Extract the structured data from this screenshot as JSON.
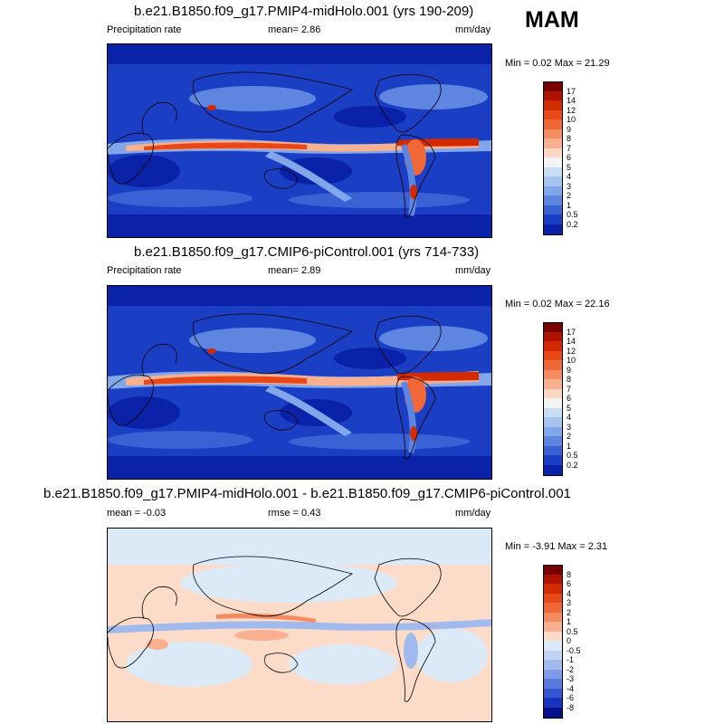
{
  "season": "MAM",
  "panels": [
    {
      "title": "b.e21.B1850.f09_g17.PMIP4-midHolo.001 (yrs 190-209)",
      "left_label": "Precipitation rate",
      "center_label": "mean=   2.86",
      "right_label": "mm/day",
      "minmax": "Min =   0.02 Max =  21.29",
      "colorbar_labels": [
        "17",
        "14",
        "12",
        "10",
        "9",
        "8",
        "7",
        "6",
        "5",
        "4",
        "3",
        "2",
        "1",
        "0.5",
        "0.2"
      ],
      "colors": [
        "#7a0000",
        "#b01200",
        "#d42a00",
        "#e84818",
        "#f06838",
        "#f58c60",
        "#f8b090",
        "#fcd6c4",
        "#f4f4f4",
        "#c8dcf6",
        "#a6c4f0",
        "#82a6ea",
        "#5e86e0",
        "#3a62d4",
        "#1a3ec4",
        "#0a22a8"
      ]
    },
    {
      "title": "b.e21.B1850.f09_g17.CMIP6-piControl.001 (yrs 714-733)",
      "left_label": "Precipitation rate",
      "center_label": "mean=   2.89",
      "right_label": "mm/day",
      "minmax": "Min =   0.02 Max =  22.16",
      "colorbar_labels": [
        "17",
        "14",
        "12",
        "10",
        "9",
        "8",
        "7",
        "6",
        "5",
        "4",
        "3",
        "2",
        "1",
        "0.5",
        "0.2"
      ],
      "colors": [
        "#7a0000",
        "#b01200",
        "#d42a00",
        "#e84818",
        "#f06838",
        "#f58c60",
        "#f8b090",
        "#fcd6c4",
        "#f4f4f4",
        "#c8dcf6",
        "#a6c4f0",
        "#82a6ea",
        "#5e86e0",
        "#3a62d4",
        "#1a3ec4",
        "#0a22a8"
      ]
    },
    {
      "title": "b.e21.B1850.f09_g17.PMIP4-midHolo.001 - b.e21.B1850.f09_g17.CMIP6-piControl.001",
      "left_label": "mean =   -0.03",
      "center_label": "rmse =   0.43",
      "right_label": "mm/day",
      "minmax": "Min =  -3.91 Max =   2.31",
      "colorbar_labels": [
        "8",
        "6",
        "4",
        "3",
        "2",
        "1",
        "0.5",
        "0",
        "-0.5",
        "-1",
        "-2",
        "-3",
        "-4",
        "-6",
        "-8"
      ],
      "colors": [
        "#7a0000",
        "#b01200",
        "#d42a00",
        "#e84818",
        "#f06838",
        "#f58c60",
        "#f8b090",
        "#fcdcc8",
        "#dceaf8",
        "#c0d4f2",
        "#a0baee",
        "#7e9ce8",
        "#5a7ade",
        "#3456d0",
        "#1834bc",
        "#060f8c"
      ]
    }
  ]
}
